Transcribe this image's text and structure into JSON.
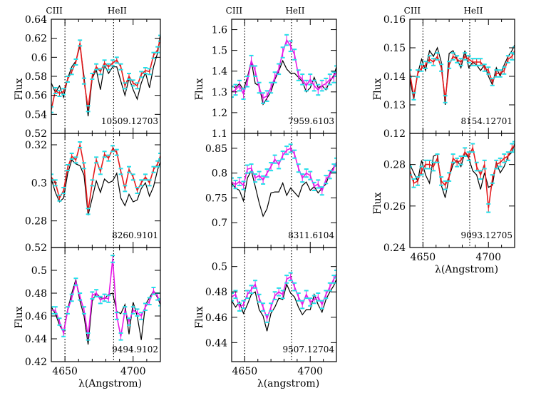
{
  "colors": {
    "frame": "#000000",
    "model": "#000000",
    "fit_red": "#e41a1c",
    "fit_magenta": "#e619e6",
    "errorbar": "#22e0ea"
  },
  "chart_data": [
    {
      "type": "line",
      "label": "10509.12703",
      "fit": "red",
      "xlim": [
        4640,
        4720
      ],
      "ylim": [
        0.52,
        0.64
      ],
      "yticks": [
        "0.52",
        "0.54",
        "0.56",
        "0.58",
        "0.6",
        "0.62",
        "0.64"
      ],
      "ylabel": "Flux",
      "xlabel": "",
      "show_xticks": false,
      "top_labels": [
        "CIII",
        "HeII"
      ],
      "x": [
        4640,
        4643,
        4646,
        4649,
        4652,
        4655,
        4658,
        4661,
        4664,
        4667,
        4670,
        4673,
        4676,
        4679,
        4682,
        4685,
        4688,
        4691,
        4694,
        4697,
        4700,
        4703,
        4706,
        4709,
        4712,
        4715,
        4718,
        4720
      ],
      "model": [
        0.573,
        0.563,
        0.57,
        0.558,
        0.578,
        0.59,
        0.596,
        0.612,
        0.58,
        0.538,
        0.578,
        0.587,
        0.566,
        0.592,
        0.583,
        0.59,
        0.59,
        0.575,
        0.56,
        0.578,
        0.566,
        0.556,
        0.573,
        0.584,
        0.568,
        0.59,
        0.605,
        0.624
      ],
      "observed": [
        0.545,
        0.565,
        0.562,
        0.564,
        0.577,
        0.585,
        0.595,
        0.615,
        0.575,
        0.546,
        0.58,
        0.59,
        0.585,
        0.594,
        0.59,
        0.594,
        0.597,
        0.59,
        0.57,
        0.58,
        0.573,
        0.57,
        0.582,
        0.586,
        0.585,
        0.602,
        0.608,
        0.62
      ],
      "verrors": [
        0.003,
        0.003,
        0.003,
        0.003,
        0.003,
        0.003,
        0.003,
        0.003,
        0.003,
        0.003,
        0.003,
        0.003,
        0.003,
        0.003,
        0.003,
        0.003,
        0.003,
        0.003,
        0.003,
        0.003,
        0.003,
        0.003,
        0.003,
        0.003,
        0.003,
        0.003,
        0.003,
        0.003
      ]
    },
    {
      "type": "line",
      "label": "7959.6103",
      "fit": "magenta",
      "xlim": [
        4640,
        4720
      ],
      "ylim": [
        1.1,
        1.65
      ],
      "yticks": [
        "1.1",
        "1.2",
        "1.3",
        "1.4",
        "1.5",
        "1.6"
      ],
      "ylabel": "Flux",
      "xlabel": "",
      "show_xticks": false,
      "top_labels": [
        "CIII",
        "HeII"
      ],
      "x": [
        4640,
        4643,
        4646,
        4649,
        4652,
        4655,
        4658,
        4661,
        4664,
        4667,
        4670,
        4673,
        4676,
        4679,
        4682,
        4685,
        4688,
        4691,
        4694,
        4697,
        4700,
        4703,
        4706,
        4709,
        4712,
        4715,
        4718,
        4720
      ],
      "model": [
        1.33,
        1.32,
        1.34,
        1.31,
        1.37,
        1.45,
        1.34,
        1.33,
        1.24,
        1.27,
        1.3,
        1.36,
        1.4,
        1.45,
        1.41,
        1.39,
        1.39,
        1.37,
        1.35,
        1.3,
        1.32,
        1.37,
        1.32,
        1.33,
        1.31,
        1.35,
        1.38,
        1.42
      ],
      "observed": [
        1.3,
        1.31,
        1.33,
        1.29,
        1.35,
        1.45,
        1.4,
        1.32,
        1.27,
        1.28,
        1.32,
        1.37,
        1.41,
        1.49,
        1.55,
        1.52,
        1.48,
        1.38,
        1.36,
        1.33,
        1.36,
        1.33,
        1.31,
        1.33,
        1.34,
        1.36,
        1.37,
        1.4
      ],
      "verrors": [
        0.025,
        0.025,
        0.025,
        0.025,
        0.025,
        0.025,
        0.025,
        0.025,
        0.025,
        0.025,
        0.025,
        0.025,
        0.025,
        0.025,
        0.025,
        0.025,
        0.025,
        0.025,
        0.025,
        0.025,
        0.025,
        0.025,
        0.025,
        0.025,
        0.025,
        0.025,
        0.025,
        0.025
      ]
    },
    {
      "type": "line",
      "label": "8154.12701",
      "fit": "red",
      "xlim": [
        4640,
        4720
      ],
      "ylim": [
        0.12,
        0.16
      ],
      "yticks": [
        "0.12",
        "0.13",
        "0.14",
        "0.15",
        "0.16"
      ],
      "ylabel": "Flux",
      "xlabel": "",
      "show_xticks": false,
      "top_labels": [
        "CIII",
        "HeII"
      ],
      "x": [
        4640,
        4643,
        4646,
        4649,
        4652,
        4655,
        4658,
        4661,
        4664,
        4667,
        4670,
        4673,
        4676,
        4679,
        4682,
        4685,
        4688,
        4691,
        4694,
        4697,
        4700,
        4703,
        4706,
        4709,
        4712,
        4715,
        4718,
        4720
      ],
      "model": [
        0.139,
        0.132,
        0.141,
        0.146,
        0.142,
        0.149,
        0.147,
        0.15,
        0.145,
        0.13,
        0.148,
        0.149,
        0.146,
        0.143,
        0.149,
        0.143,
        0.145,
        0.144,
        0.142,
        0.144,
        0.14,
        0.137,
        0.143,
        0.14,
        0.144,
        0.147,
        0.149,
        0.151
      ],
      "observed": [
        0.141,
        0.133,
        0.141,
        0.143,
        0.144,
        0.146,
        0.145,
        0.147,
        0.143,
        0.132,
        0.144,
        0.147,
        0.146,
        0.145,
        0.147,
        0.146,
        0.145,
        0.145,
        0.145,
        0.143,
        0.142,
        0.138,
        0.141,
        0.141,
        0.142,
        0.146,
        0.147,
        0.149
      ],
      "verrors": [
        0.0012,
        0.0012,
        0.0012,
        0.0012,
        0.0012,
        0.0012,
        0.0012,
        0.0012,
        0.0012,
        0.0012,
        0.0012,
        0.0012,
        0.0012,
        0.0012,
        0.0012,
        0.0012,
        0.0012,
        0.0012,
        0.0012,
        0.0012,
        0.0012,
        0.0012,
        0.0012,
        0.0012,
        0.0012,
        0.0012,
        0.0012,
        0.0012
      ]
    },
    {
      "type": "line",
      "label": "8260.9101",
      "fit": "red",
      "xlim": [
        4640,
        4720
      ],
      "ylim": [
        0.266,
        0.326
      ],
      "yticks": [
        "0.28",
        "0.3",
        "0.32"
      ],
      "ylabel": "",
      "xlabel": "",
      "show_xticks": false,
      "top_labels": [],
      "x": [
        4640,
        4643,
        4646,
        4649,
        4652,
        4655,
        4658,
        4661,
        4664,
        4667,
        4670,
        4673,
        4676,
        4679,
        4682,
        4685,
        4688,
        4691,
        4694,
        4697,
        4700,
        4703,
        4706,
        4709,
        4712,
        4715,
        4718,
        4720
      ],
      "model": [
        0.302,
        0.295,
        0.29,
        0.292,
        0.305,
        0.312,
        0.31,
        0.309,
        0.304,
        0.283,
        0.292,
        0.301,
        0.295,
        0.302,
        0.3,
        0.301,
        0.305,
        0.292,
        0.288,
        0.294,
        0.29,
        0.291,
        0.297,
        0.3,
        0.293,
        0.298,
        0.307,
        0.311
      ],
      "observed": [
        0.303,
        0.3,
        0.292,
        0.296,
        0.308,
        0.314,
        0.312,
        0.32,
        0.309,
        0.285,
        0.3,
        0.312,
        0.306,
        0.315,
        0.313,
        0.318,
        0.316,
        0.306,
        0.297,
        0.307,
        0.303,
        0.296,
        0.3,
        0.303,
        0.3,
        0.307,
        0.31,
        0.314
      ],
      "verrors": [
        0.0015,
        0.0015,
        0.0015,
        0.0015,
        0.0015,
        0.0015,
        0.0015,
        0.0015,
        0.0015,
        0.0015,
        0.0015,
        0.0015,
        0.0015,
        0.0015,
        0.0015,
        0.0015,
        0.0015,
        0.0015,
        0.0015,
        0.0015,
        0.0015,
        0.0015,
        0.0015,
        0.0015,
        0.0015,
        0.0015,
        0.0015,
        0.0015
      ]
    },
    {
      "type": "line",
      "label": "8311.6104",
      "fit": "magenta",
      "xlim": [
        4640,
        4720
      ],
      "ylim": [
        0.65,
        0.88
      ],
      "yticks": [
        "0.7",
        "0.75",
        "0.8",
        "0.85"
      ],
      "ylabel": "",
      "xlabel": "",
      "show_xticks": false,
      "top_labels": [],
      "x": [
        4640,
        4643,
        4646,
        4649,
        4652,
        4655,
        4658,
        4661,
        4664,
        4667,
        4670,
        4673,
        4676,
        4679,
        4682,
        4685,
        4688,
        4691,
        4694,
        4697,
        4700,
        4703,
        4706,
        4709,
        4712,
        4715,
        4718,
        4720
      ],
      "model": [
        0.78,
        0.77,
        0.765,
        0.744,
        0.79,
        0.805,
        0.773,
        0.74,
        0.713,
        0.728,
        0.76,
        0.762,
        0.762,
        0.78,
        0.755,
        0.77,
        0.761,
        0.752,
        0.775,
        0.782,
        0.765,
        0.773,
        0.76,
        0.77,
        0.778,
        0.8,
        0.812,
        0.818
      ],
      "observed": [
        0.782,
        0.777,
        0.783,
        0.775,
        0.808,
        0.81,
        0.79,
        0.795,
        0.786,
        0.8,
        0.813,
        0.828,
        0.817,
        0.836,
        0.846,
        0.85,
        0.838,
        0.81,
        0.79,
        0.8,
        0.795,
        0.773,
        0.778,
        0.764,
        0.787,
        0.797,
        0.81,
        0.822
      ],
      "verrors": [
        0.008,
        0.008,
        0.008,
        0.008,
        0.008,
        0.008,
        0.008,
        0.008,
        0.008,
        0.008,
        0.008,
        0.008,
        0.008,
        0.008,
        0.008,
        0.008,
        0.008,
        0.008,
        0.008,
        0.008,
        0.008,
        0.008,
        0.008,
        0.008,
        0.008,
        0.008,
        0.008,
        0.008
      ]
    },
    {
      "type": "line",
      "label": "9093.12705",
      "fit": "red",
      "xlim": [
        4640,
        4720
      ],
      "ylim": [
        0.24,
        0.295
      ],
      "yticks": [
        "0.24",
        "0.26",
        "0.28"
      ],
      "ylabel": "Flux",
      "xlabel": "λ(Angstrom)",
      "show_xticks": true,
      "top_labels": [],
      "x": [
        4640,
        4643,
        4646,
        4649,
        4652,
        4655,
        4658,
        4661,
        4664,
        4667,
        4670,
        4673,
        4676,
        4679,
        4682,
        4685,
        4688,
        4691,
        4694,
        4697,
        4700,
        4703,
        4706,
        4709,
        4712,
        4715,
        4718,
        4720
      ],
      "model": [
        0.28,
        0.276,
        0.272,
        0.282,
        0.275,
        0.271,
        0.284,
        0.285,
        0.27,
        0.264,
        0.274,
        0.28,
        0.282,
        0.279,
        0.286,
        0.283,
        0.277,
        0.275,
        0.268,
        0.276,
        0.269,
        0.27,
        0.281,
        0.276,
        0.279,
        0.284,
        0.286,
        0.29
      ],
      "observed": [
        0.277,
        0.271,
        0.272,
        0.277,
        0.28,
        0.28,
        0.279,
        0.283,
        0.272,
        0.27,
        0.274,
        0.283,
        0.281,
        0.282,
        0.286,
        0.284,
        0.288,
        0.279,
        0.275,
        0.28,
        0.259,
        0.273,
        0.28,
        0.281,
        0.283,
        0.284,
        0.288,
        0.289
      ],
      "verrors": [
        0.002,
        0.002,
        0.002,
        0.002,
        0.002,
        0.002,
        0.002,
        0.002,
        0.002,
        0.002,
        0.002,
        0.002,
        0.002,
        0.002,
        0.002,
        0.002,
        0.002,
        0.002,
        0.002,
        0.002,
        0.002,
        0.002,
        0.002,
        0.002,
        0.002,
        0.002,
        0.002,
        0.002
      ]
    },
    {
      "type": "line",
      "label": "9494.9102",
      "fit": "magenta",
      "xlim": [
        4640,
        4720
      ],
      "ylim": [
        0.42,
        0.52
      ],
      "yticks": [
        "0.42",
        "0.44",
        "0.46",
        "0.48",
        "0.5",
        "0.52"
      ],
      "ylabel": "Flux",
      "xlabel": "λ(Angstrom)",
      "show_xticks": true,
      "top_labels": [],
      "x": [
        4640,
        4643,
        4646,
        4649,
        4652,
        4655,
        4658,
        4661,
        4664,
        4667,
        4670,
        4673,
        4676,
        4679,
        4682,
        4685,
        4688,
        4691,
        4694,
        4697,
        4700,
        4703,
        4706,
        4709,
        4712,
        4715,
        4718,
        4720
      ],
      "model": [
        0.468,
        0.462,
        0.452,
        0.446,
        0.466,
        0.48,
        0.492,
        0.473,
        0.46,
        0.435,
        0.473,
        0.48,
        0.476,
        0.475,
        0.479,
        0.48,
        0.464,
        0.462,
        0.47,
        0.444,
        0.472,
        0.46,
        0.439,
        0.47,
        0.476,
        0.482,
        0.476,
        0.47
      ],
      "observed": [
        0.465,
        0.465,
        0.455,
        0.445,
        0.465,
        0.476,
        0.49,
        0.477,
        0.465,
        0.442,
        0.478,
        0.48,
        0.474,
        0.476,
        0.475,
        0.51,
        0.46,
        0.442,
        0.465,
        0.455,
        0.465,
        0.463,
        0.46,
        0.468,
        0.473,
        0.482,
        0.477,
        0.472
      ],
      "verrors": [
        0.003,
        0.003,
        0.003,
        0.003,
        0.003,
        0.003,
        0.003,
        0.003,
        0.003,
        0.003,
        0.003,
        0.003,
        0.003,
        0.003,
        0.003,
        0.003,
        0.003,
        0.003,
        0.003,
        0.003,
        0.003,
        0.003,
        0.003,
        0.003,
        0.003,
        0.003,
        0.003,
        0.003
      ]
    },
    {
      "type": "line",
      "label": "9507.12704",
      "fit": "magenta",
      "xlim": [
        4640,
        4720
      ],
      "ylim": [
        0.425,
        0.515
      ],
      "yticks": [
        "0.44",
        "0.46",
        "0.48",
        "0.5"
      ],
      "ylabel": "Flux",
      "xlabel": "λ(angstrom)",
      "show_xticks": true,
      "top_labels": [],
      "x": [
        4640,
        4643,
        4646,
        4649,
        4652,
        4655,
        4658,
        4661,
        4664,
        4667,
        4670,
        4673,
        4676,
        4679,
        4682,
        4685,
        4688,
        4691,
        4694,
        4697,
        4700,
        4703,
        4706,
        4709,
        4712,
        4715,
        4718,
        4720
      ],
      "model": [
        0.473,
        0.468,
        0.472,
        0.463,
        0.47,
        0.478,
        0.48,
        0.466,
        0.461,
        0.449,
        0.463,
        0.468,
        0.475,
        0.474,
        0.486,
        0.479,
        0.476,
        0.468,
        0.462,
        0.466,
        0.466,
        0.478,
        0.47,
        0.464,
        0.474,
        0.48,
        0.485,
        0.49
      ],
      "observed": [
        0.476,
        0.478,
        0.468,
        0.47,
        0.478,
        0.482,
        0.486,
        0.475,
        0.468,
        0.459,
        0.468,
        0.477,
        0.48,
        0.478,
        0.49,
        0.492,
        0.484,
        0.476,
        0.47,
        0.478,
        0.472,
        0.474,
        0.476,
        0.47,
        0.478,
        0.484,
        0.49,
        0.494
      ],
      "verrors": [
        0.003,
        0.003,
        0.003,
        0.003,
        0.003,
        0.003,
        0.003,
        0.003,
        0.003,
        0.003,
        0.003,
        0.003,
        0.003,
        0.003,
        0.003,
        0.003,
        0.003,
        0.003,
        0.003,
        0.003,
        0.003,
        0.003,
        0.003,
        0.003,
        0.003,
        0.003,
        0.003,
        0.003
      ]
    }
  ]
}
